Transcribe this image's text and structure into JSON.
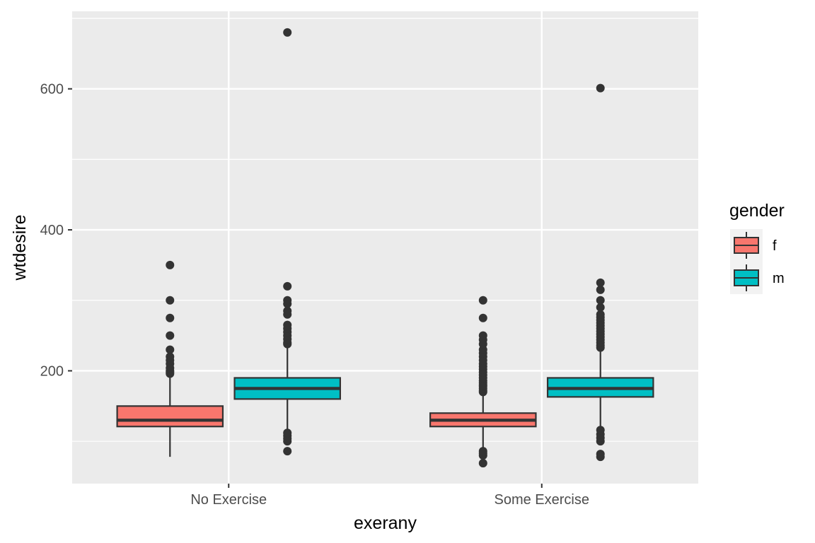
{
  "chart_data": {
    "type": "boxplot",
    "xlabel": "exerany",
    "ylabel": "wtdesire",
    "categories": [
      "No Exercise",
      "Some Exercise"
    ],
    "ylim": [
      40,
      710
    ],
    "yticks": [
      200,
      400,
      600
    ],
    "grid": true,
    "legend": {
      "title": "gender",
      "placement": "right"
    },
    "series": [
      {
        "name": "f",
        "color": "#F8766D",
        "boxes": [
          {
            "category": "No Exercise",
            "whisker_low": 78,
            "q1": 121,
            "median": 130,
            "q3": 150,
            "whisker_high": 193,
            "outliers": [
              196,
              198,
              200,
              204,
              210,
              215,
              220,
              230,
              250,
              275,
              300,
              350
            ]
          },
          {
            "category": "Some Exercise",
            "whisker_low": 90,
            "q1": 121,
            "median": 130,
            "q3": 140,
            "whisker_high": 168,
            "outliers": [
              69,
              80,
              83,
              86,
              170,
              172,
              175,
              178,
              180,
              183,
              186,
              190,
              194,
              198,
              202,
              206,
              210,
              215,
              220,
              225,
              230,
              238,
              244,
              250,
              275,
              300
            ]
          }
        ]
      },
      {
        "name": "m",
        "color": "#00BFC4",
        "boxes": [
          {
            "category": "No Exercise",
            "whisker_low": 115,
            "q1": 160,
            "median": 175,
            "q3": 190,
            "whisker_high": 235,
            "outliers": [
              86,
              100,
              104,
              108,
              112,
              238,
              240,
              245,
              250,
              255,
              260,
              265,
              280,
              285,
              295,
              300,
              320,
              680
            ]
          },
          {
            "category": "Some Exercise",
            "whisker_low": 120,
            "q1": 163,
            "median": 175,
            "q3": 190,
            "whisker_high": 230,
            "outliers": [
              78,
              82,
              100,
              105,
              110,
              116,
              233,
              236,
              240,
              244,
              248,
              252,
              256,
              260,
              264,
              268,
              272,
              276,
              280,
              290,
              300,
              315,
              325,
              601
            ]
          }
        ]
      }
    ]
  }
}
